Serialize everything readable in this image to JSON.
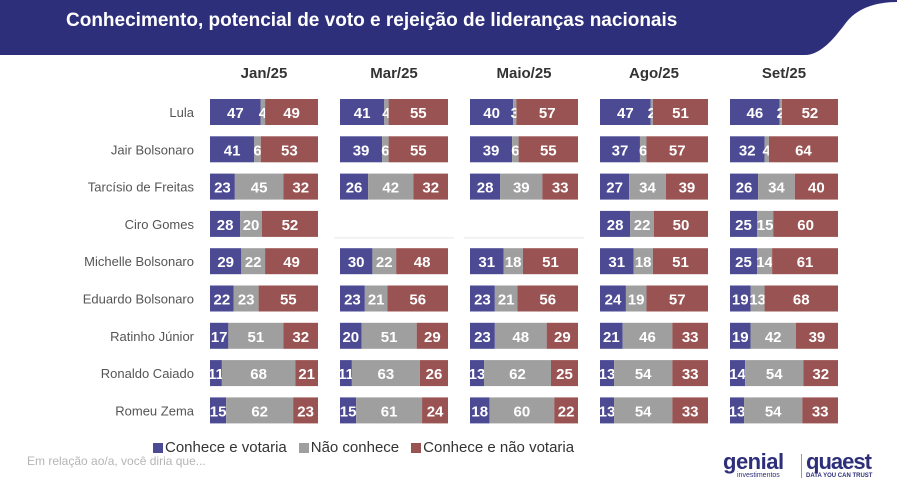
{
  "header": {
    "title": "Conhecimento, potencial de voto e rejeição de lideranças nacionais"
  },
  "colors": {
    "header_bg": "#2e2f7a",
    "knows_votes": "#4d4a94",
    "doesnt_know": "#9f9f9f",
    "knows_not_votes": "#9a5353"
  },
  "chart_data": {
    "type": "bar",
    "stacked": true,
    "panels": [
      "Jan/25",
      "Mar/25",
      "Maio/25",
      "Ago/25",
      "Set/25"
    ],
    "categories": [
      "Lula",
      "Jair Bolsonaro",
      "Tarcísio de Freitas",
      "Ciro Gomes",
      "Michelle Bolsonaro",
      "Eduardo Bolsonaro",
      "Ratinho Júnior",
      "Ronaldo Caiado",
      "Romeu Zema"
    ],
    "series": [
      {
        "name": "Conhece e votaria",
        "color": "#4d4a94",
        "values": [
          [
            47,
            41,
            40,
            47,
            46
          ],
          [
            41,
            39,
            39,
            37,
            32
          ],
          [
            23,
            26,
            28,
            27,
            26
          ],
          [
            28,
            null,
            null,
            28,
            25
          ],
          [
            29,
            30,
            31,
            31,
            25
          ],
          [
            22,
            23,
            23,
            24,
            19
          ],
          [
            17,
            20,
            23,
            21,
            19
          ],
          [
            11,
            11,
            13,
            13,
            14
          ],
          [
            15,
            15,
            18,
            13,
            13
          ]
        ]
      },
      {
        "name": "Não conhece",
        "color": "#9f9f9f",
        "values": [
          [
            4,
            4,
            3,
            2,
            2
          ],
          [
            6,
            6,
            6,
            6,
            4
          ],
          [
            45,
            42,
            39,
            34,
            34
          ],
          [
            20,
            null,
            null,
            22,
            15
          ],
          [
            22,
            22,
            18,
            18,
            14
          ],
          [
            23,
            21,
            21,
            19,
            13
          ],
          [
            51,
            51,
            48,
            46,
            42
          ],
          [
            68,
            63,
            62,
            54,
            54
          ],
          [
            62,
            61,
            60,
            54,
            54
          ]
        ]
      },
      {
        "name": "Conhece e não votaria",
        "color": "#9a5353",
        "values": [
          [
            49,
            55,
            57,
            51,
            52
          ],
          [
            53,
            55,
            55,
            57,
            64
          ],
          [
            32,
            32,
            33,
            39,
            40
          ],
          [
            52,
            null,
            null,
            50,
            60
          ],
          [
            49,
            48,
            51,
            51,
            61
          ],
          [
            55,
            56,
            56,
            57,
            68
          ],
          [
            32,
            29,
            29,
            33,
            39
          ],
          [
            21,
            26,
            25,
            33,
            32
          ],
          [
            23,
            24,
            22,
            33,
            33
          ]
        ]
      }
    ],
    "legend_position": "bottom"
  },
  "footnote": "Em relação ao/a, você diria que...",
  "logos": {
    "genial": "genial",
    "genial_sub": "investimentos",
    "quaest": "quaest",
    "quaest_sub": "DATA YOU CAN TRUST"
  }
}
